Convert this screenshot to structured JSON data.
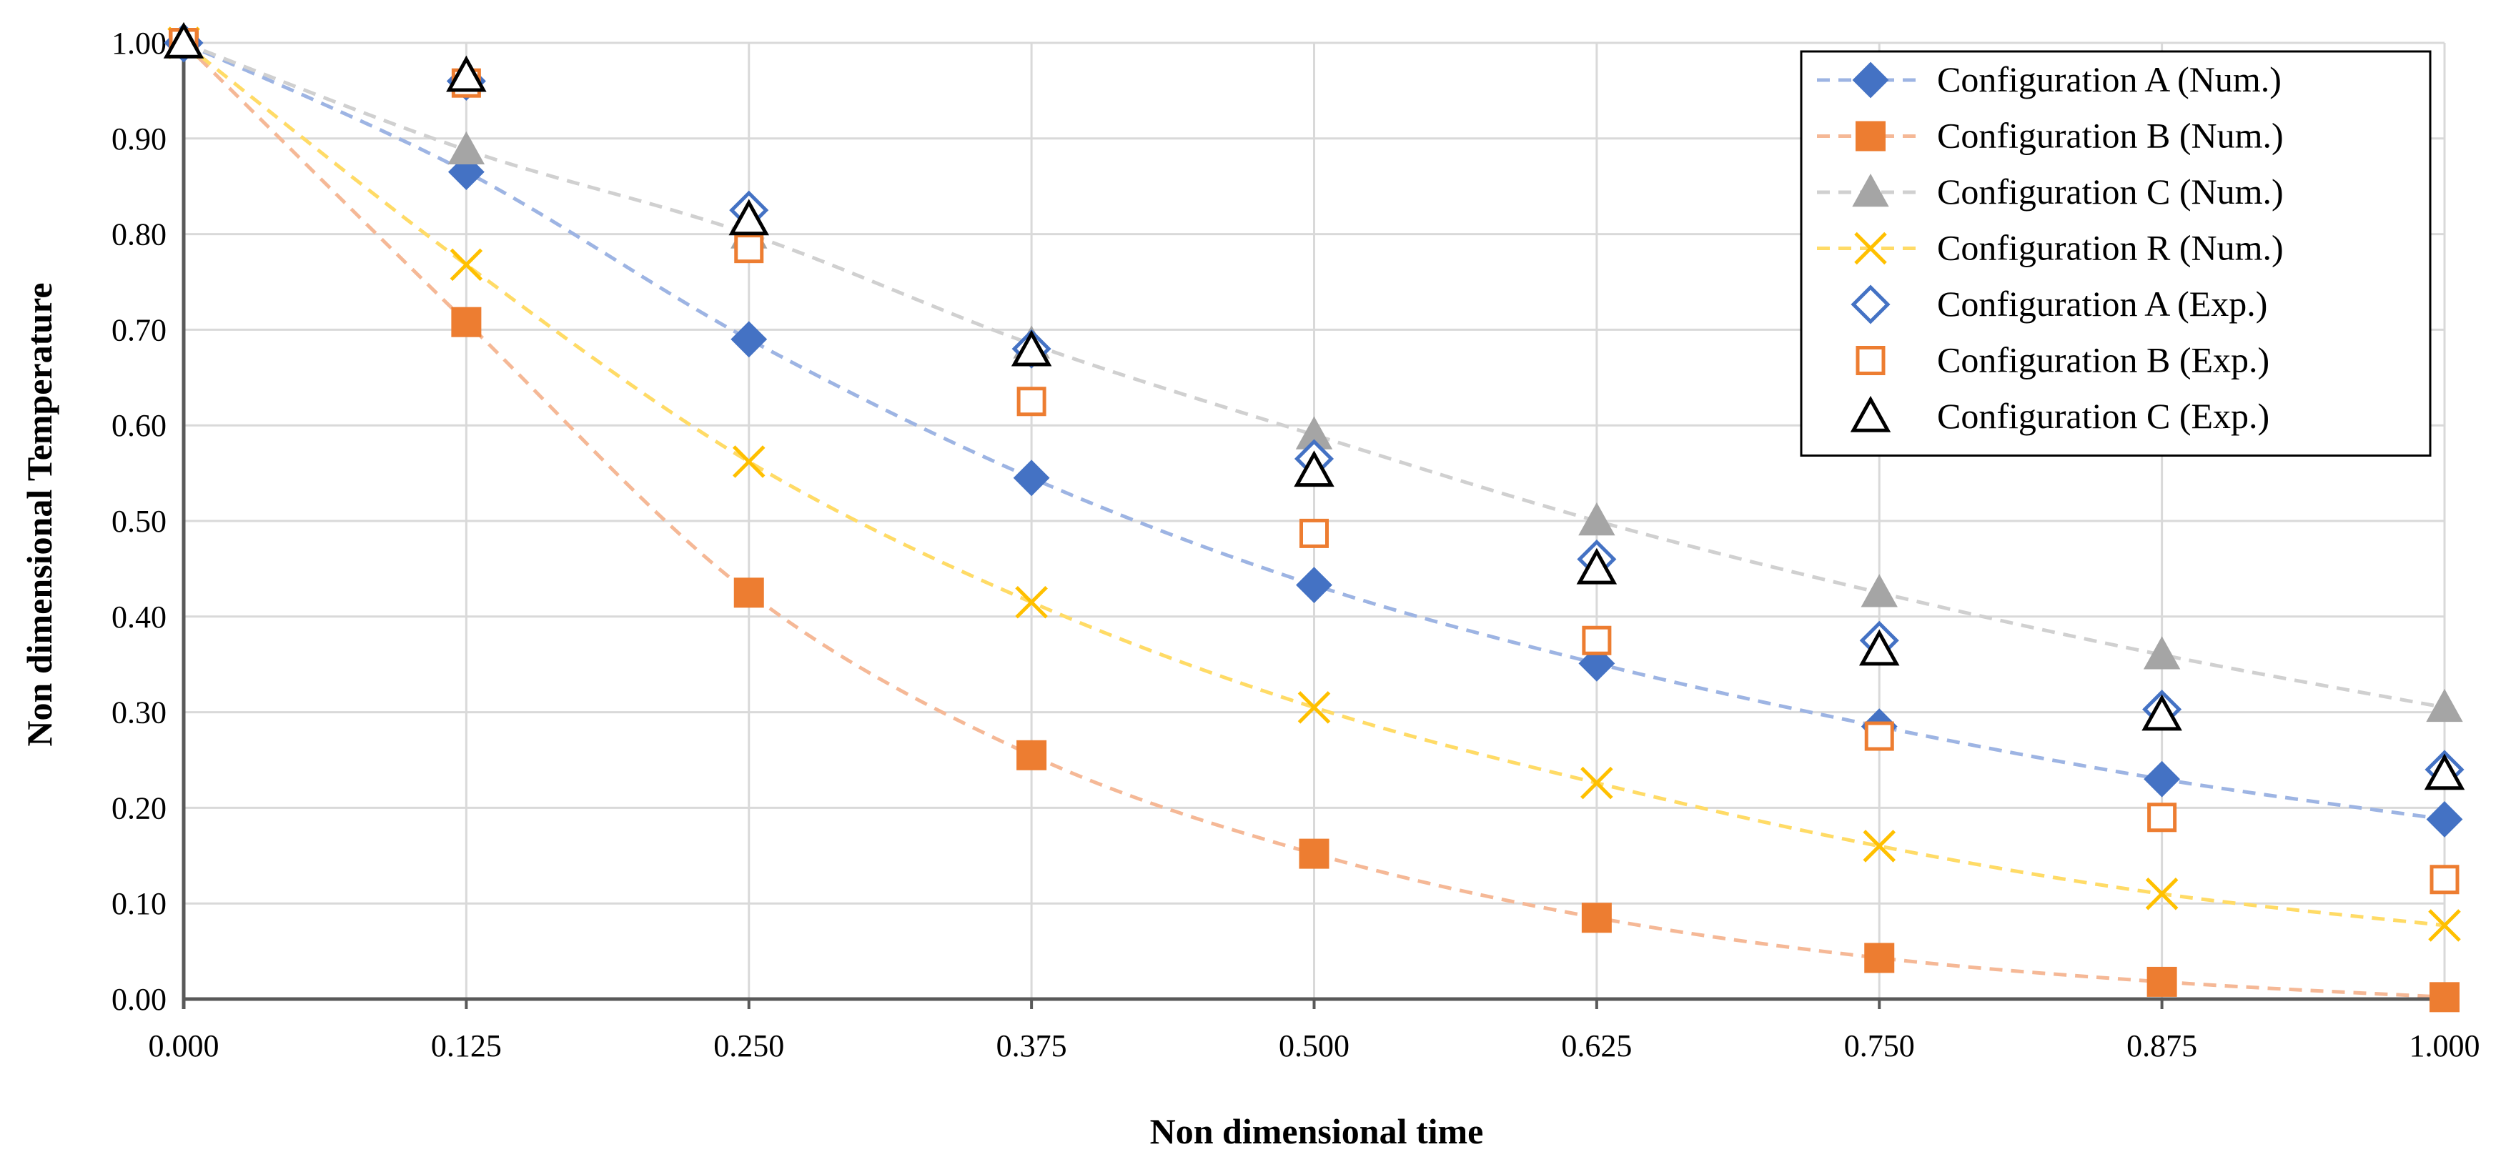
{
  "chart_data": {
    "type": "scatter",
    "title": "",
    "xlabel": "Non dimensional time",
    "ylabel": "Non dimensional Temperature",
    "xlim": [
      0,
      1
    ],
    "ylim": [
      0,
      1
    ],
    "grid": true,
    "legend_position": "top-right",
    "x": [
      0.0,
      0.125,
      0.25,
      0.375,
      0.5,
      0.625,
      0.75,
      0.875,
      1.0
    ],
    "x_tick_labels": [
      "0.000",
      "0.125",
      "0.250",
      "0.375",
      "0.500",
      "0.625",
      "0.750",
      "0.875",
      "1.000"
    ],
    "y_ticks": [
      0,
      0.1,
      0.2,
      0.3,
      0.4,
      0.5,
      0.6,
      0.7,
      0.8,
      0.9,
      1.0
    ],
    "y_tick_labels": [
      "0.00",
      "0.10",
      "0.20",
      "0.30",
      "0.40",
      "0.50",
      "0.60",
      "0.70",
      "0.80",
      "0.90",
      "1.00"
    ],
    "series": [
      {
        "name": "Configuration A (Num.)",
        "marker": "diamond-filled",
        "line": "dashed",
        "color": "#4472C4",
        "line_color": "#9DB4E3",
        "values": [
          1.0,
          0.865,
          0.69,
          0.545,
          0.433,
          0.351,
          0.285,
          0.23,
          0.188
        ]
      },
      {
        "name": "Configuration B (Num.)",
        "marker": "square-filled",
        "line": "dashed",
        "color": "#ED7D31",
        "line_color": "#F5B896",
        "values": [
          1.0,
          0.708,
          0.425,
          0.255,
          0.152,
          0.085,
          0.043,
          0.018,
          0.002
        ]
      },
      {
        "name": "Configuration C (Num.)",
        "marker": "triangle-filled",
        "line": "dashed",
        "color": "#A5A5A5",
        "line_color": "#D0D0D0",
        "values": [
          1.0,
          0.888,
          0.8,
          0.685,
          0.59,
          0.5,
          0.425,
          0.36,
          0.305
        ]
      },
      {
        "name": "Configuration R (Num.)",
        "marker": "x",
        "line": "dashed",
        "color": "#FFC000",
        "line_color": "#FFDB66",
        "values": [
          1.0,
          0.768,
          0.562,
          0.415,
          0.305,
          0.226,
          0.16,
          0.11,
          0.077
        ]
      },
      {
        "name": "Configuration A (Exp.)",
        "marker": "diamond-open",
        "line": "none",
        "color": "#4472C4",
        "values": [
          1.0,
          0.96,
          0.825,
          0.68,
          0.565,
          0.46,
          0.375,
          0.303,
          0.24
        ]
      },
      {
        "name": "Configuration B (Exp.)",
        "marker": "square-open",
        "line": "none",
        "color": "#ED7D31",
        "values": [
          1.0,
          0.958,
          0.785,
          0.625,
          0.487,
          0.375,
          0.275,
          0.19,
          0.125
        ]
      },
      {
        "name": "Configuration C (Exp.)",
        "marker": "triangle-open",
        "line": "none",
        "color": "#000000",
        "values": [
          1.0,
          0.965,
          0.815,
          0.678,
          0.552,
          0.45,
          0.365,
          0.297,
          0.235
        ]
      }
    ]
  }
}
